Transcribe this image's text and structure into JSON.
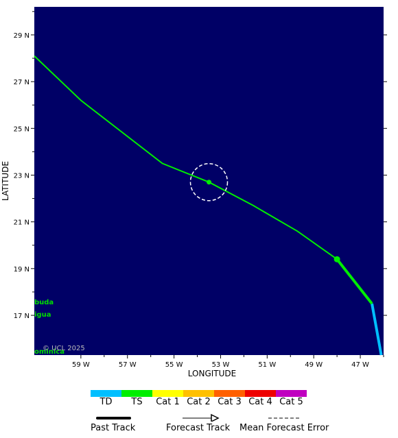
{
  "map": {
    "axis_x_title": "LONGITUDE",
    "axis_y_title": "LATITUDE",
    "copyright": "© UCL 2025",
    "background_color": "#000066",
    "lat_ticks": [
      "29 N",
      "27 N",
      "25 N",
      "23 N",
      "21 N",
      "19 N",
      "17 N"
    ],
    "lon_ticks": [
      "59 W",
      "57 W",
      "55 W",
      "53 W",
      "51 W",
      "49 W",
      "47 W"
    ],
    "place_labels": [
      {
        "text": "buda",
        "color": "#00dd00"
      },
      {
        "text": "igua",
        "color": "#00dd00"
      },
      {
        "text": "ominica",
        "color": "#00dd00"
      }
    ],
    "current_position": {
      "lat": 22.7,
      "lon": -53.5
    },
    "last_fix": {
      "lat": 19.4,
      "lon": -48.0
    },
    "track_past": [
      {
        "lat": 17.5,
        "lon": -46.5,
        "cat": "TS"
      },
      {
        "lat": 19.4,
        "lon": -48.0,
        "cat": "TS"
      }
    ],
    "track_td": [
      {
        "lat": 15.3,
        "lon": -46.1,
        "cat": "TD"
      },
      {
        "lat": 17.5,
        "lon": -46.5,
        "cat": "TD"
      }
    ],
    "track_forecast": [
      {
        "lat": 19.4,
        "lon": -48.0
      },
      {
        "lat": 20.6,
        "lon": -49.7
      },
      {
        "lat": 21.7,
        "lon": -51.6
      },
      {
        "lat": 22.7,
        "lon": -53.5
      },
      {
        "lat": 23.5,
        "lon": -55.5
      },
      {
        "lat": 26.2,
        "lon": -59.0
      },
      {
        "lat": 28.1,
        "lon": -61.0
      }
    ]
  },
  "legend": {
    "categories": [
      {
        "label": "TD",
        "color": "#00bfff"
      },
      {
        "label": "TS",
        "color": "#00ee00"
      },
      {
        "label": "Cat 1",
        "color": "#ffff00"
      },
      {
        "label": "Cat 2",
        "color": "#ffc000"
      },
      {
        "label": "Cat 3",
        "color": "#ff6000"
      },
      {
        "label": "Cat 4",
        "color": "#ee0000"
      },
      {
        "label": "Cat 5",
        "color": "#c000c0"
      }
    ],
    "past_track_label": "Past Track",
    "forecast_track_label": "Forecast Track",
    "mean_error_label": "Mean Forecast Error"
  }
}
